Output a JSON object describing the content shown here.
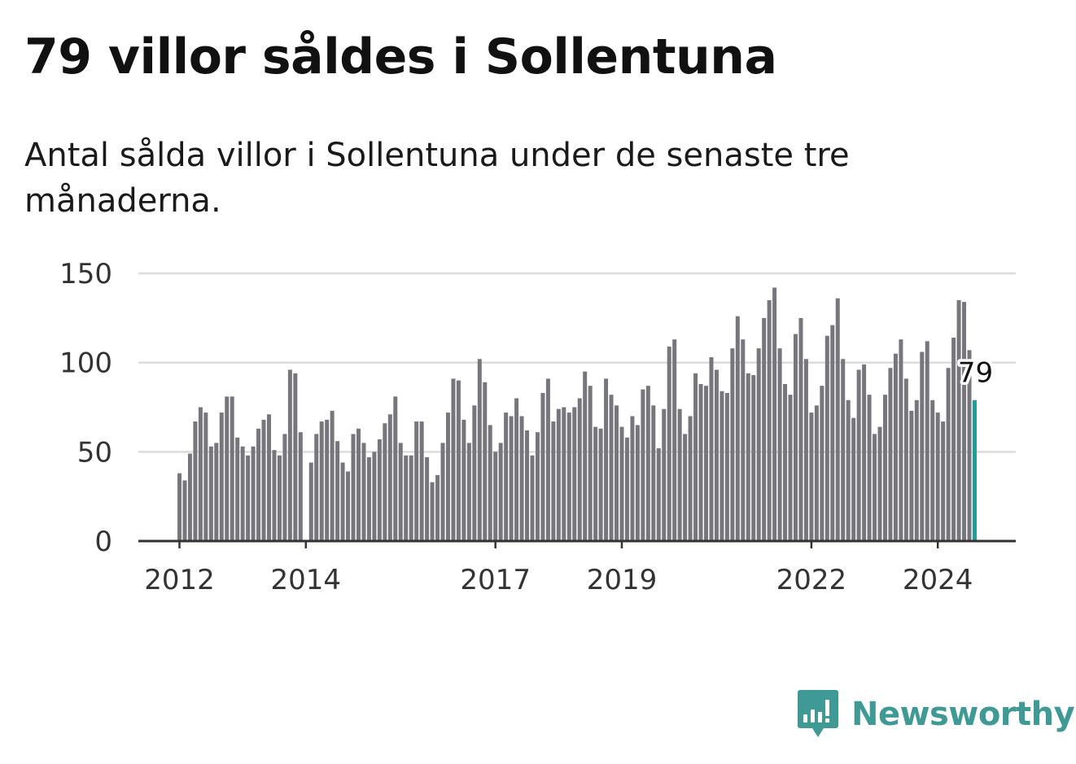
{
  "title": "79 villor såldes i Sollentuna",
  "subtitle": "Antal sålda villor i Sollentuna under de senaste tre månaderna.",
  "brand": {
    "name": "Newsworthy",
    "icon": "bar-chart-icon",
    "color": "#3f9a96"
  },
  "colors": {
    "bar": "#76767c",
    "highlight": "#1d9e98",
    "grid": "#dcdcdc",
    "axis": "#333333"
  },
  "chart_data": {
    "type": "bar",
    "title": "79 villor såldes i Sollentuna",
    "xlabel": "",
    "ylabel": "",
    "ylim": [
      0,
      150
    ],
    "yticks": [
      0,
      50,
      100,
      150
    ],
    "xticks": [
      {
        "label": "2012",
        "index": 0
      },
      {
        "label": "2014",
        "index": 24
      },
      {
        "label": "2017",
        "index": 60
      },
      {
        "label": "2019",
        "index": 84
      },
      {
        "label": "2022",
        "index": 120
      },
      {
        "label": "2024",
        "index": 144
      }
    ],
    "start": "2012-01",
    "frequency": "monthly",
    "values": [
      38,
      34,
      49,
      67,
      75,
      72,
      53,
      55,
      72,
      81,
      81,
      58,
      53,
      48,
      53,
      63,
      68,
      71,
      51,
      48,
      60,
      96,
      94,
      61,
      0,
      44,
      60,
      67,
      68,
      73,
      56,
      44,
      39,
      60,
      63,
      55,
      47,
      50,
      57,
      66,
      71,
      81,
      55,
      48,
      48,
      67,
      67,
      47,
      33,
      37,
      55,
      72,
      91,
      90,
      68,
      55,
      76,
      102,
      89,
      65,
      50,
      55,
      72,
      70,
      80,
      70,
      62,
      48,
      61,
      83,
      91,
      67,
      74,
      75,
      72,
      75,
      80,
      95,
      87,
      64,
      63,
      91,
      82,
      76,
      64,
      58,
      70,
      65,
      85,
      87,
      76,
      52,
      74,
      109,
      113,
      74,
      60,
      70,
      94,
      88,
      87,
      103,
      96,
      84,
      83,
      108,
      126,
      113,
      94,
      93,
      108,
      125,
      135,
      142,
      108,
      88,
      82,
      116,
      125,
      102,
      72,
      76,
      87,
      115,
      121,
      136,
      102,
      79,
      69,
      96,
      99,
      82,
      60,
      64,
      82,
      97,
      105,
      113,
      91,
      73,
      79,
      106,
      112,
      79,
      72,
      67,
      97,
      114,
      135,
      134,
      107,
      79
    ],
    "highlight_index": 151,
    "last_value_label": "79"
  }
}
